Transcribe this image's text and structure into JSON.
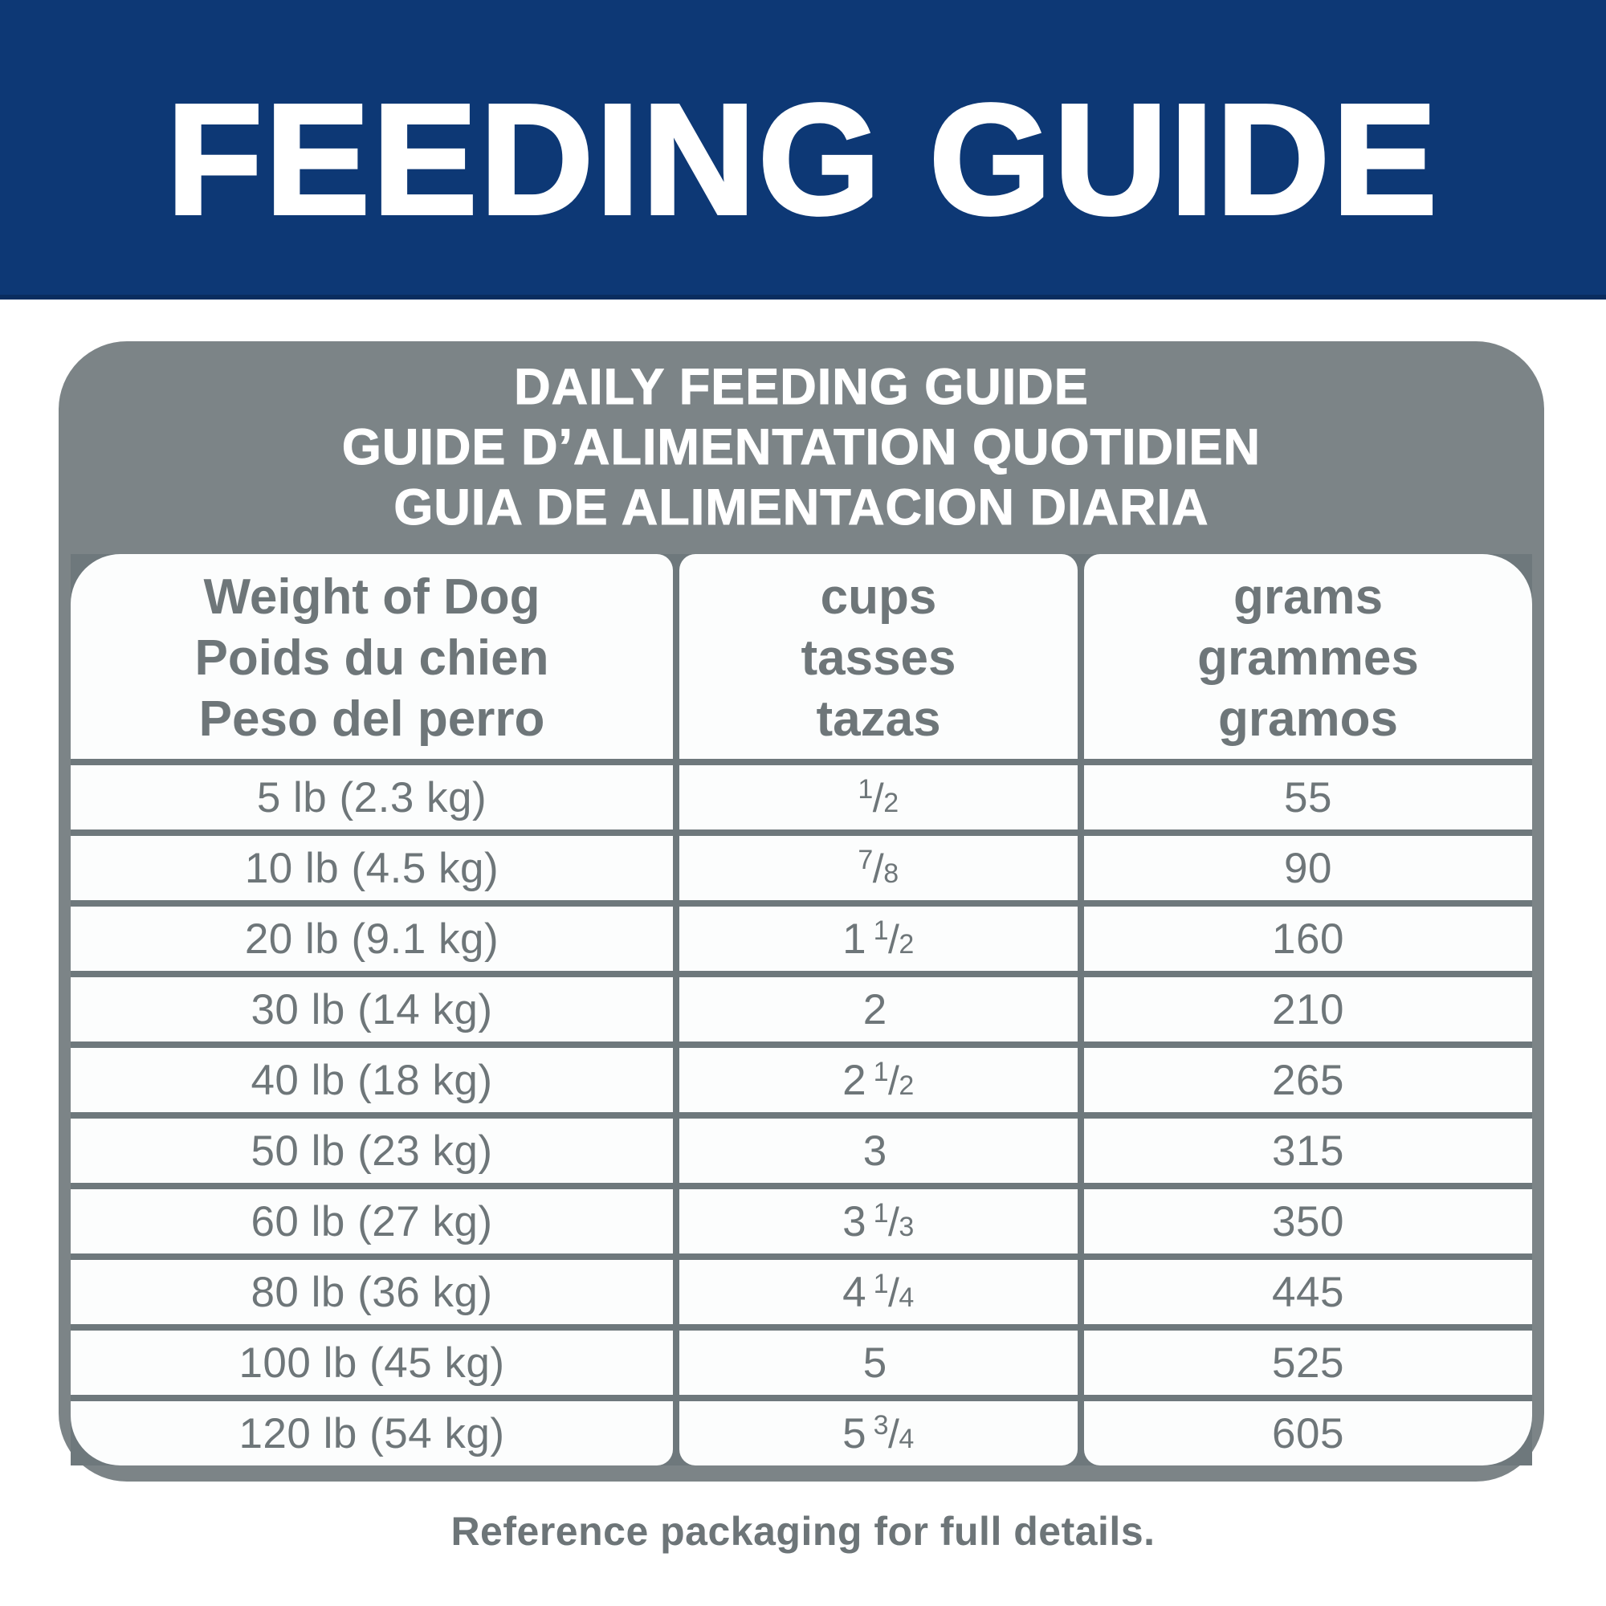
{
  "banner": {
    "title": "FEEDING GUIDE",
    "bg_color": "#0d3875",
    "accent_color": "#0a2d5f",
    "text_color": "#ffffff"
  },
  "card": {
    "bg_color": "#7c8487",
    "grid_line_color": "#6e787c",
    "cell_bg_color": "#fcfdfd",
    "text_color": "#6e7679",
    "title_lines": [
      "DAILY FEEDING GUIDE",
      "GUIDE D’ALIMENTATION QUOTIDIEN",
      "GUIA DE ALIMENTACION DIARIA"
    ],
    "columns": [
      {
        "lines": [
          "Weight of Dog",
          "Poids du chien",
          "Peso del perro"
        ]
      },
      {
        "lines": [
          "cups",
          "tasses",
          "tazas"
        ]
      },
      {
        "lines": [
          "grams",
          "grammes",
          "gramos"
        ]
      }
    ],
    "rows": [
      {
        "weight": "5 lb (2.3 kg)",
        "cups_whole": "",
        "cups_num": "1",
        "cups_den": "2",
        "grams": "55"
      },
      {
        "weight": "10 lb (4.5 kg)",
        "cups_whole": "",
        "cups_num": "7",
        "cups_den": "8",
        "grams": "90"
      },
      {
        "weight": "20 lb (9.1 kg)",
        "cups_whole": "1",
        "cups_num": "1",
        "cups_den": "2",
        "grams": "160"
      },
      {
        "weight": "30 lb (14 kg)",
        "cups_whole": "2",
        "cups_num": "",
        "cups_den": "",
        "grams": "210"
      },
      {
        "weight": "40 lb (18 kg)",
        "cups_whole": "2",
        "cups_num": "1",
        "cups_den": "2",
        "grams": "265"
      },
      {
        "weight": "50 lb (23 kg)",
        "cups_whole": "3",
        "cups_num": "",
        "cups_den": "",
        "grams": "315"
      },
      {
        "weight": "60 lb (27 kg)",
        "cups_whole": "3",
        "cups_num": "1",
        "cups_den": "3",
        "grams": "350"
      },
      {
        "weight": "80 lb (36 kg)",
        "cups_whole": "4",
        "cups_num": "1",
        "cups_den": "4",
        "grams": "445"
      },
      {
        "weight": "100 lb (45 kg)",
        "cups_whole": "5",
        "cups_num": "",
        "cups_den": "",
        "grams": "525"
      },
      {
        "weight": "120 lb (54 kg)",
        "cups_whole": "5",
        "cups_num": "3",
        "cups_den": "4",
        "grams": "605"
      }
    ]
  },
  "footer": {
    "note": "Reference packaging for full details."
  }
}
